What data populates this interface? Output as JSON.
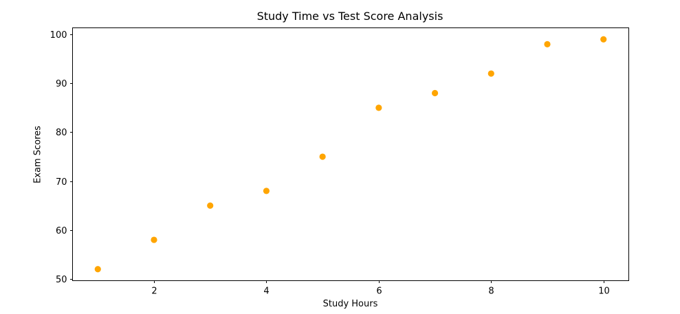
{
  "chart_data": {
    "type": "scatter",
    "title": "Study Time vs Test Score Analysis",
    "xlabel": "Study Hours",
    "ylabel": "Exam Scores",
    "x": [
      1,
      2,
      3,
      4,
      5,
      6,
      7,
      8,
      9,
      10
    ],
    "series": [
      {
        "name": "Exam Scores",
        "values": [
          52,
          58,
          65,
          68,
          75,
          85,
          88,
          92,
          98,
          99
        ],
        "color": "#ffa500"
      }
    ],
    "xlim": [
      0.55,
      10.45
    ],
    "ylim": [
      49.65,
      101.35
    ],
    "xticks": [
      2,
      4,
      6,
      8,
      10
    ],
    "yticks": [
      50,
      60,
      70,
      80,
      90,
      100
    ],
    "grid": false,
    "legend": null
  }
}
